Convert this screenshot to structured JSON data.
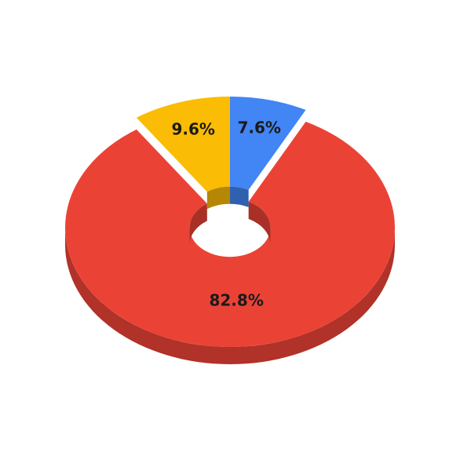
{
  "chart_data": {
    "type": "donut",
    "values": [
      7.6,
      82.8,
      9.6
    ],
    "value_labels": [
      "7.6%",
      "82.8%",
      "9.6%"
    ],
    "colors": [
      "#4285f4",
      "#ea4335",
      "#fbbc05"
    ],
    "exploded": [
      true,
      false,
      true
    ]
  }
}
